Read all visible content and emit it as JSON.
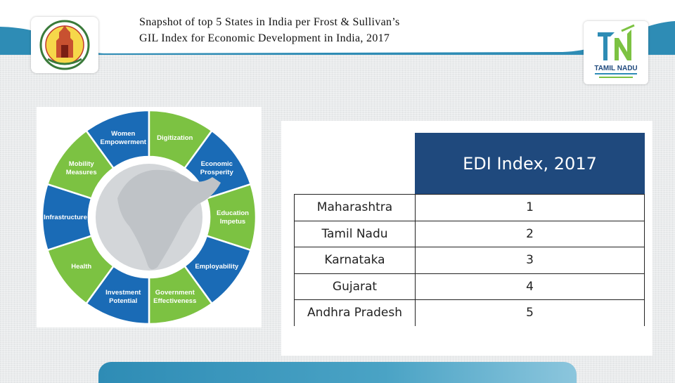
{
  "slide": {
    "title_line1": "Snapshot of top 5 States in India per Frost & Sullivan’s",
    "title_line2": "GIL Index for Economic Development in India, 2017"
  },
  "logos": {
    "left_name": "tamil-nadu-government-seal",
    "right_text": "TAMIL NADU"
  },
  "wheel": {
    "colors": {
      "blue": "#1a6bb6",
      "green": "#7cc242",
      "center": "#d3d6d9"
    },
    "segments": [
      {
        "label": [
          "Women",
          "Empowerment"
        ],
        "color": "blue"
      },
      {
        "label": [
          "Digitization"
        ],
        "color": "green"
      },
      {
        "label": [
          "Economic",
          "Prosperity"
        ],
        "color": "blue"
      },
      {
        "label": [
          "Education",
          "Impetus"
        ],
        "color": "green"
      },
      {
        "label": [
          "Employability"
        ],
        "color": "blue"
      },
      {
        "label": [
          "Government",
          "Effectiveness"
        ],
        "color": "green"
      },
      {
        "label": [
          "Investment",
          "Potential"
        ],
        "color": "blue"
      },
      {
        "label": [
          "Health"
        ],
        "color": "green"
      },
      {
        "label": [
          "Infrastructure"
        ],
        "color": "blue"
      },
      {
        "label": [
          "Mobility",
          "Measures"
        ],
        "color": "green"
      }
    ]
  },
  "edi_table": {
    "header": "EDI Index, 2017",
    "header_color": "#1f497d",
    "rows": [
      {
        "state": "Maharashtra",
        "rank": "1"
      },
      {
        "state": "Tamil Nadu",
        "rank": "2"
      },
      {
        "state": "Karnataka",
        "rank": "3"
      },
      {
        "state": "Gujarat",
        "rank": "4"
      },
      {
        "state": "Andhra Pradesh",
        "rank": "5"
      }
    ]
  }
}
